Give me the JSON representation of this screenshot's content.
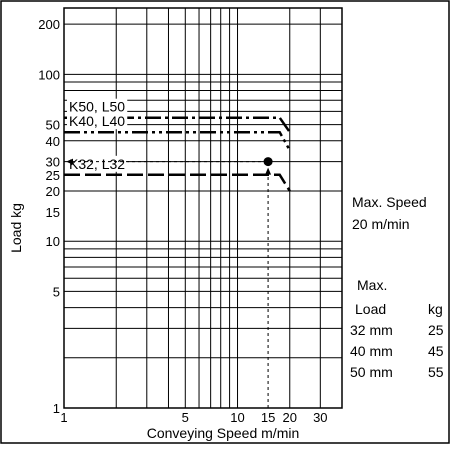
{
  "chart_data": {
    "type": "line",
    "xlabel": "Conveying Speed m/min",
    "ylabel": "Load kg",
    "x_scale": "log",
    "y_scale": "log",
    "xlim": [
      1,
      40
    ],
    "ylim": [
      1,
      250
    ],
    "x_ticks": [
      1,
      5,
      10,
      15,
      20,
      30
    ],
    "y_ticks": [
      1,
      5,
      10,
      15,
      20,
      25,
      30,
      40,
      50,
      100,
      200
    ],
    "grid": true,
    "series": [
      {
        "name": "K50, L50",
        "x": [
          1,
          17.5,
          20
        ],
        "y": [
          55,
          55,
          45
        ]
      },
      {
        "name": "K40, L40",
        "x": [
          1,
          17.5,
          20
        ],
        "y": [
          45,
          45,
          35
        ]
      },
      {
        "name": "K32, L32",
        "x": [
          1,
          17.5,
          20
        ],
        "y": [
          25,
          25,
          20
        ]
      }
    ],
    "example_point": {
      "x": 15,
      "y": 30
    }
  },
  "side_info": {
    "max_speed_label": "Max. Speed",
    "max_speed_value": "20 m/min",
    "max_load_label": "Max.",
    "table_headers": [
      "Load",
      "kg"
    ],
    "table_rows": [
      [
        "32 mm",
        "25"
      ],
      [
        "40 mm",
        "45"
      ],
      [
        "50 mm",
        "55"
      ]
    ]
  }
}
